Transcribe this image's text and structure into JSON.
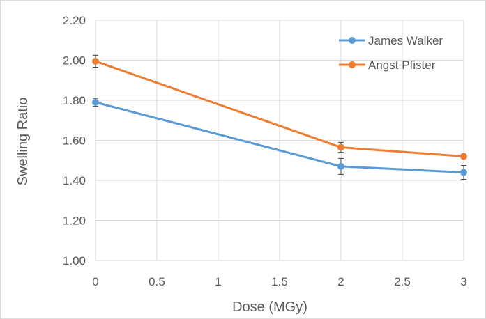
{
  "chart_data": {
    "type": "line",
    "title": "",
    "xlabel": "Dose (MGy)",
    "ylabel": "Swelling Ratio",
    "xlim": [
      0,
      3
    ],
    "ylim": [
      1.0,
      2.2
    ],
    "x_ticks": [
      "0",
      "0.5",
      "1",
      "1.5",
      "2",
      "2.5",
      "3"
    ],
    "y_ticks": [
      "1.00",
      "1.20",
      "1.40",
      "1.60",
      "1.80",
      "2.00",
      "2.20"
    ],
    "grid": true,
    "legend_position": "top-right",
    "series": [
      {
        "name": "James Walker",
        "color": "#5b9bd5",
        "x": [
          0,
          2,
          3
        ],
        "y": [
          1.79,
          1.47,
          1.44
        ],
        "error": [
          0.02,
          0.04,
          0.035
        ]
      },
      {
        "name": "Angst Pfister",
        "color": "#ed7d31",
        "x": [
          0,
          2,
          3
        ],
        "y": [
          1.995,
          1.565,
          1.52
        ],
        "error": [
          0.03,
          0.025,
          0.01
        ]
      }
    ]
  }
}
